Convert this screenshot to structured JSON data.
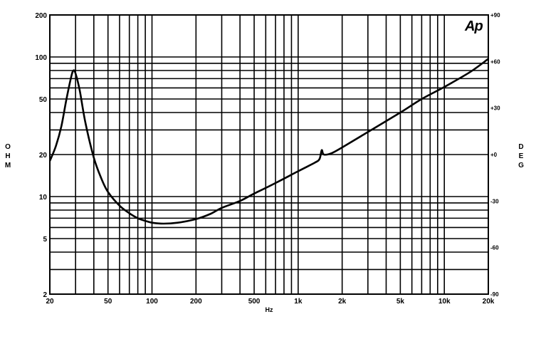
{
  "logo": "Ap",
  "chart_data": {
    "type": "line",
    "xlabel": "Hz",
    "ylabel": "OHM",
    "y2label": "DEG",
    "xscale": "log",
    "yscale": "log",
    "xlim": [
      20,
      20000
    ],
    "ylim": [
      2,
      200
    ],
    "y2lim": [
      -90,
      90
    ],
    "grid": true,
    "x_ticks": [
      {
        "value": 20,
        "label": "20"
      },
      {
        "value": 50,
        "label": "50"
      },
      {
        "value": 100,
        "label": "100"
      },
      {
        "value": 200,
        "label": "200"
      },
      {
        "value": 500,
        "label": "500"
      },
      {
        "value": 1000,
        "label": "1k"
      },
      {
        "value": 2000,
        "label": "2k"
      },
      {
        "value": 5000,
        "label": "5k"
      },
      {
        "value": 10000,
        "label": "10k"
      },
      {
        "value": 20000,
        "label": "20k"
      }
    ],
    "y_ticks": [
      {
        "value": 2,
        "label": "2"
      },
      {
        "value": 5,
        "label": "5"
      },
      {
        "value": 10,
        "label": "10"
      },
      {
        "value": 20,
        "label": "20"
      },
      {
        "value": 50,
        "label": "50"
      },
      {
        "value": 100,
        "label": "100"
      },
      {
        "value": 200,
        "label": "200"
      }
    ],
    "y2_ticks": [
      {
        "value": -90,
        "label": "-90"
      },
      {
        "value": -60,
        "label": "-60"
      },
      {
        "value": -30,
        "label": "-30"
      },
      {
        "value": 0,
        "label": "+0"
      },
      {
        "value": 30,
        "label": "+30"
      },
      {
        "value": 60,
        "label": "+60"
      },
      {
        "value": 90,
        "label": "+90"
      }
    ],
    "series": [
      {
        "x": [
          20,
          22,
          24,
          26,
          28,
          29,
          30,
          32,
          35,
          40,
          45,
          50,
          60,
          70,
          80,
          90,
          100,
          120,
          150,
          200,
          250,
          300,
          400,
          500,
          700,
          1000,
          1300,
          1400,
          1450,
          1500,
          1700,
          2000,
          3000,
          5000,
          7000,
          10000,
          15000,
          20000
        ],
        "y": [
          18,
          23,
          32,
          50,
          72,
          80,
          76,
          58,
          34,
          19,
          13.5,
          10.8,
          8.6,
          7.6,
          7.0,
          6.7,
          6.5,
          6.4,
          6.5,
          6.9,
          7.5,
          8.3,
          9.3,
          10.5,
          12.5,
          15.2,
          17.5,
          18.6,
          21.5,
          20.0,
          20.5,
          22.5,
          29,
          40,
          50,
          61,
          78,
          97
        ]
      }
    ]
  }
}
